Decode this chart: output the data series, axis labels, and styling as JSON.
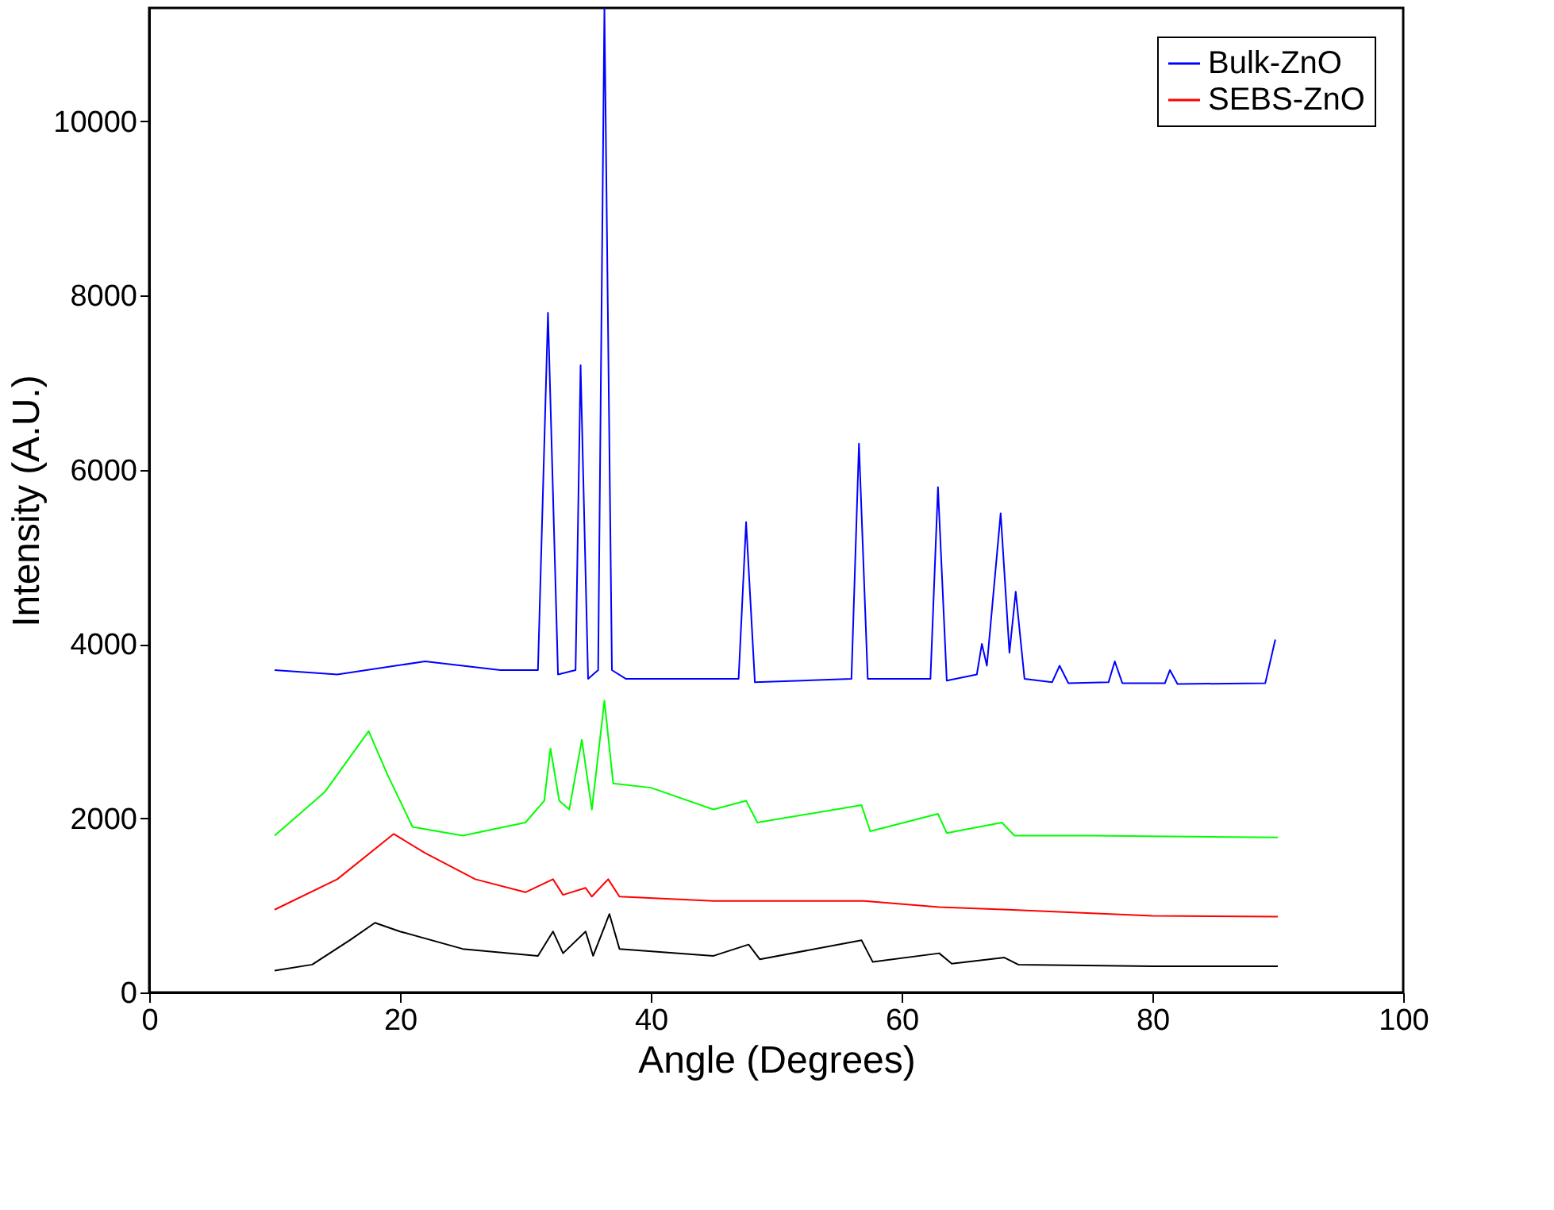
{
  "chart_data": {
    "type": "line",
    "xlabel": "Angle (Degrees)",
    "ylabel": "Intensity (A.U.)",
    "xlim": [
      0,
      100
    ],
    "xticks": [
      0,
      20,
      40,
      60,
      80,
      100
    ],
    "ylim": [
      0,
      11300
    ],
    "yticks": [
      0,
      2000,
      4000,
      6000,
      8000,
      10000
    ],
    "grid": false,
    "legend": "top right",
    "marker": "none",
    "line_style": "solid",
    "series": [
      {
        "color": "#000000",
        "x": [
          10,
          13,
          16,
          18,
          20,
          25,
          31,
          32.2,
          33,
          34.8,
          35.4,
          36.7,
          37.5,
          45,
          47.8,
          48.7,
          56.8,
          57.7,
          63,
          64,
          68.2,
          69.3,
          80,
          90
        ],
        "values": [
          250,
          320,
          600,
          800,
          700,
          500,
          420,
          700,
          450,
          700,
          420,
          900,
          500,
          420,
          550,
          380,
          600,
          350,
          450,
          330,
          400,
          320,
          300,
          300
        ]
      },
      {
        "name": "Bulk-ZnO",
        "color": "#0000ff",
        "x": [
          10,
          15,
          22,
          28,
          31,
          31.8,
          32.6,
          34,
          34.4,
          35,
          35.8,
          36.3,
          36.9,
          38,
          47,
          47.6,
          48.3,
          56,
          56.6,
          57.3,
          62.3,
          62.9,
          63.6,
          66,
          66.4,
          66.8,
          67.9,
          68.6,
          69.1,
          69.8,
          72,
          72.6,
          73.3,
          76.5,
          77,
          77.6,
          81,
          81.4,
          82,
          89,
          89.8
        ],
        "values": [
          3700,
          3650,
          3800,
          3700,
          3700,
          7800,
          3650,
          3700,
          7200,
          3600,
          3700,
          11300,
          3700,
          3600,
          3600,
          5400,
          3560,
          3600,
          6300,
          3600,
          3600,
          5800,
          3580,
          3650,
          4000,
          3750,
          5500,
          3900,
          4600,
          3600,
          3560,
          3750,
          3550,
          3560,
          3800,
          3550,
          3550,
          3700,
          3540,
          3550,
          4050
        ]
      },
      {
        "name": "SEBS-ZnO",
        "color": "#ff0000",
        "x": [
          10,
          15,
          19.5,
          22,
          26,
          30,
          32.2,
          33,
          34.8,
          35.3,
          36.6,
          37.5,
          45,
          57,
          63,
          68.5,
          80,
          90
        ],
        "values": [
          950,
          1300,
          1820,
          1600,
          1300,
          1150,
          1300,
          1120,
          1200,
          1100,
          1300,
          1100,
          1050,
          1050,
          980,
          950,
          880,
          870
        ]
      },
      {
        "color": "#00ff00",
        "x": [
          10,
          14,
          17.5,
          19,
          21,
          25,
          30,
          31.5,
          32,
          32.7,
          33.5,
          34.5,
          35.3,
          36.3,
          37,
          40,
          45,
          47.6,
          48.5,
          56.8,
          57.5,
          62.9,
          63.6,
          68,
          69,
          75,
          90
        ],
        "values": [
          1800,
          2300,
          3000,
          2500,
          1900,
          1800,
          1950,
          2200,
          2800,
          2200,
          2100,
          2900,
          2100,
          3350,
          2400,
          2350,
          2100,
          2200,
          1950,
          2150,
          1850,
          2050,
          1830,
          1950,
          1800,
          1800,
          1780
        ]
      }
    ]
  }
}
